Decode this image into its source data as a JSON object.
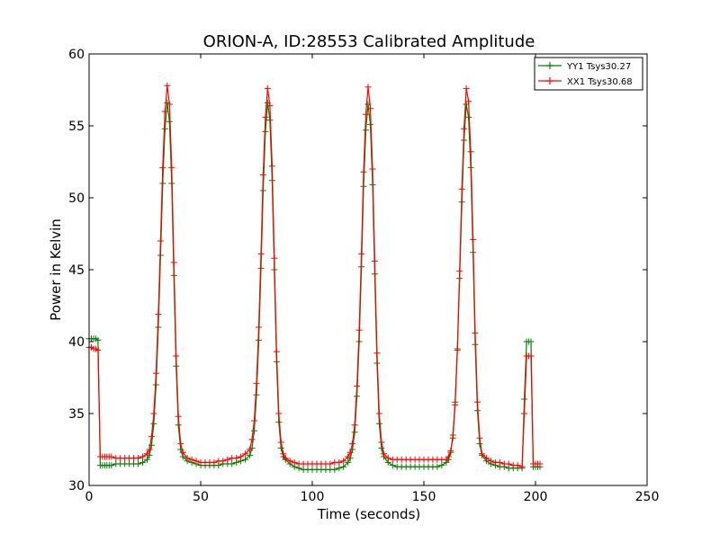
{
  "chart_data": {
    "type": "line",
    "title": "ORION-A, ID:28553 Calibrated Amplitude",
    "xlabel": "Time (seconds)",
    "ylabel": "Power in Kelvin",
    "xlim": [
      0,
      250
    ],
    "ylim": [
      30,
      60
    ],
    "xticks": [
      0,
      50,
      100,
      150,
      200,
      250
    ],
    "yticks": [
      30,
      35,
      40,
      45,
      50,
      55,
      60
    ],
    "grid": false,
    "legend_position": "top-right",
    "marker": "plus",
    "series": [
      {
        "name": "YY1 Tsys30.27",
        "color": "#008000",
        "x": [
          0,
          1,
          2,
          3,
          4,
          5,
          6,
          7,
          8,
          9,
          10,
          12,
          14,
          16,
          18,
          20,
          22,
          24,
          26,
          27,
          28,
          29,
          30,
          31,
          32,
          33,
          34,
          35,
          36,
          37,
          38,
          39,
          40,
          41,
          42,
          44,
          46,
          48,
          50,
          52,
          54,
          56,
          58,
          60,
          62,
          64,
          66,
          68,
          70,
          72,
          73,
          74,
          75,
          76,
          77,
          78,
          79,
          80,
          81,
          82,
          83,
          84,
          85,
          86,
          87,
          88,
          90,
          92,
          94,
          96,
          98,
          100,
          102,
          104,
          106,
          108,
          110,
          112,
          114,
          116,
          117,
          118,
          119,
          120,
          121,
          122,
          123,
          124,
          125,
          126,
          127,
          128,
          129,
          130,
          131,
          132,
          134,
          136,
          138,
          140,
          142,
          144,
          146,
          148,
          150,
          152,
          154,
          156,
          158,
          160,
          161,
          162,
          163,
          164,
          165,
          166,
          167,
          168,
          169,
          170,
          171,
          172,
          173,
          174,
          175,
          176,
          178,
          180,
          182,
          184,
          186,
          188,
          190,
          192,
          194,
          195,
          196,
          197,
          198,
          199,
          200,
          201,
          202
        ],
        "values": [
          40.2,
          40.2,
          40.2,
          40.2,
          40.1,
          31.4,
          31.4,
          31.4,
          31.4,
          31.4,
          31.4,
          31.5,
          31.5,
          31.5,
          31.5,
          31.5,
          31.5,
          31.6,
          31.8,
          32.1,
          32.8,
          34.3,
          37.0,
          41.0,
          46.0,
          51.0,
          54.8,
          56.6,
          55.3,
          51.0,
          44.6,
          38.3,
          34.2,
          32.5,
          32.0,
          31.7,
          31.6,
          31.5,
          31.4,
          31.4,
          31.4,
          31.4,
          31.4,
          31.5,
          31.5,
          31.5,
          31.6,
          31.7,
          31.8,
          32.1,
          32.6,
          33.8,
          36.3,
          40.1,
          45.1,
          50.5,
          54.6,
          56.6,
          55.4,
          51.2,
          45.0,
          38.6,
          34.4,
          32.6,
          32.0,
          31.8,
          31.5,
          31.3,
          31.2,
          31.1,
          31.1,
          31.1,
          31.1,
          31.1,
          31.1,
          31.1,
          31.1,
          31.2,
          31.3,
          31.6,
          31.9,
          32.5,
          33.7,
          36.2,
          40.0,
          45.2,
          50.8,
          54.7,
          56.5,
          55.1,
          50.9,
          44.7,
          38.5,
          34.3,
          32.6,
          32.0,
          31.6,
          31.4,
          31.3,
          31.3,
          31.3,
          31.3,
          31.3,
          31.3,
          31.3,
          31.3,
          31.3,
          31.3,
          31.4,
          31.6,
          31.8,
          32.3,
          33.5,
          35.8,
          39.5,
          44.4,
          49.7,
          54.0,
          56.5,
          55.6,
          52.1,
          46.2,
          39.8,
          35.2,
          32.9,
          32.1,
          31.7,
          31.5,
          31.4,
          31.3,
          31.3,
          31.2,
          31.2,
          31.2,
          31.2,
          36.0,
          40.0,
          40.0,
          40.0,
          31.3,
          31.3,
          31.3,
          31.3
        ]
      },
      {
        "name": "XX1 Tsys30.68",
        "color": "#ff0000",
        "x": [
          0,
          1,
          2,
          3,
          4,
          5,
          6,
          7,
          8,
          9,
          10,
          12,
          14,
          16,
          18,
          20,
          22,
          24,
          26,
          27,
          28,
          29,
          30,
          31,
          32,
          33,
          34,
          35,
          36,
          37,
          38,
          39,
          40,
          41,
          42,
          44,
          46,
          48,
          50,
          52,
          54,
          56,
          58,
          60,
          62,
          64,
          66,
          68,
          70,
          72,
          73,
          74,
          75,
          76,
          77,
          78,
          79,
          80,
          81,
          82,
          83,
          84,
          85,
          86,
          87,
          88,
          90,
          92,
          94,
          96,
          98,
          100,
          102,
          104,
          106,
          108,
          110,
          112,
          114,
          116,
          117,
          118,
          119,
          120,
          121,
          122,
          123,
          124,
          125,
          126,
          127,
          128,
          129,
          130,
          131,
          132,
          134,
          136,
          138,
          140,
          142,
          144,
          146,
          148,
          150,
          152,
          154,
          156,
          158,
          160,
          161,
          162,
          163,
          164,
          165,
          166,
          167,
          168,
          169,
          170,
          171,
          172,
          173,
          174,
          175,
          176,
          178,
          180,
          182,
          184,
          186,
          188,
          190,
          192,
          194,
          195,
          196,
          197,
          198,
          199,
          200,
          201,
          202
        ],
        "values": [
          39.6,
          39.6,
          39.5,
          39.5,
          39.4,
          32.0,
          32.0,
          32.0,
          32.0,
          32.0,
          32.0,
          31.9,
          31.9,
          31.9,
          31.9,
          31.9,
          31.9,
          32.0,
          32.2,
          32.5,
          33.4,
          35.0,
          37.8,
          41.9,
          47.0,
          52.1,
          56.0,
          57.8,
          56.5,
          52.1,
          45.5,
          39.0,
          34.8,
          32.9,
          32.3,
          31.9,
          31.8,
          31.7,
          31.6,
          31.6,
          31.6,
          31.6,
          31.7,
          31.7,
          31.8,
          31.9,
          31.9,
          32.0,
          32.2,
          32.5,
          33.2,
          34.5,
          37.1,
          41.0,
          46.1,
          51.6,
          55.6,
          57.6,
          56.4,
          52.2,
          45.8,
          39.3,
          35.0,
          33.0,
          32.2,
          31.9,
          31.7,
          31.6,
          31.5,
          31.5,
          31.5,
          31.5,
          31.5,
          31.5,
          31.5,
          31.5,
          31.6,
          31.6,
          31.7,
          32.0,
          32.3,
          32.9,
          34.2,
          36.9,
          40.8,
          46.1,
          51.8,
          55.8,
          57.7,
          56.2,
          52.0,
          45.6,
          39.2,
          35.0,
          33.0,
          32.2,
          31.9,
          31.8,
          31.8,
          31.8,
          31.8,
          31.8,
          31.8,
          31.8,
          31.8,
          31.8,
          31.8,
          31.8,
          31.8,
          31.8,
          32.0,
          32.4,
          33.3,
          35.6,
          39.4,
          44.9,
          50.6,
          54.8,
          57.6,
          56.7,
          53.2,
          47.1,
          40.6,
          35.8,
          33.3,
          32.2,
          31.9,
          31.7,
          31.6,
          31.6,
          31.5,
          31.5,
          31.4,
          31.4,
          31.3,
          35.0,
          39.0,
          39.0,
          39.0,
          31.5,
          31.5,
          31.5,
          31.5
        ]
      }
    ]
  }
}
